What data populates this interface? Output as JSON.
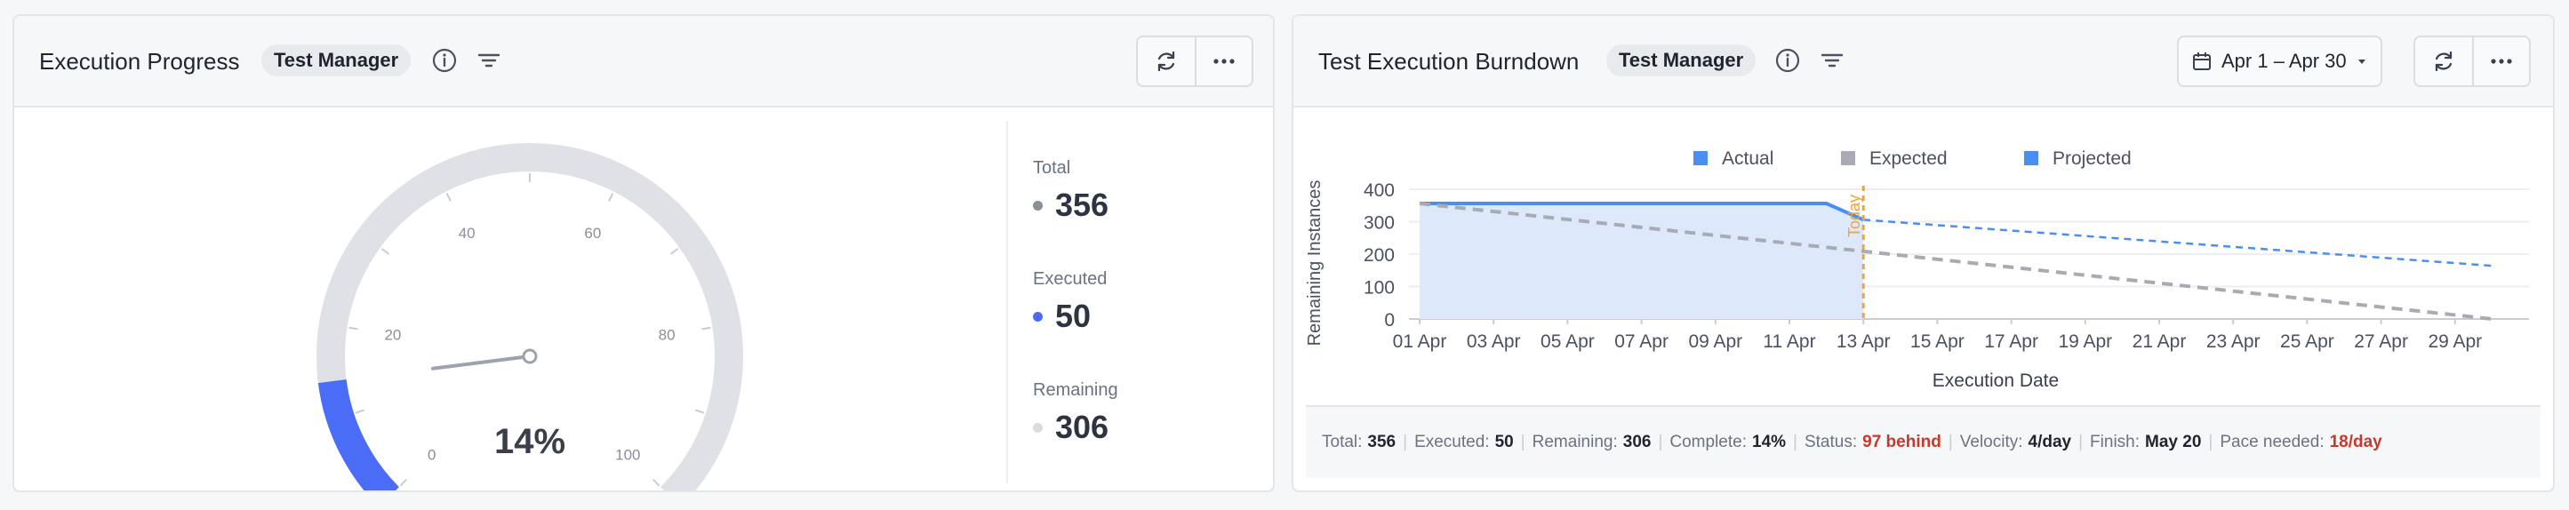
{
  "left": {
    "title": "Execution Progress",
    "badge": "Test Manager",
    "gauge": {
      "percent_label": "14%",
      "value": 14,
      "ticks": [
        "0",
        "20",
        "40",
        "60",
        "80",
        "100"
      ],
      "colors": {
        "track": "#dfe1e6",
        "fill": "#4a6cf7",
        "needle": "#9ca3af"
      }
    },
    "stats": [
      {
        "label": "Total",
        "value": "356",
        "color": "#8a8f98"
      },
      {
        "label": "Executed",
        "value": "50",
        "color": "#4a6cf7"
      },
      {
        "label": "Remaining",
        "value": "306",
        "color": "#d9dbe0"
      }
    ]
  },
  "right": {
    "title": "Test Execution Burndown",
    "badge": "Test Manager",
    "date_range": "Apr 1 – Apr 30",
    "footer": [
      {
        "label": "Total:",
        "value": "356"
      },
      {
        "label": "Executed:",
        "value": "50"
      },
      {
        "label": "Remaining:",
        "value": "306"
      },
      {
        "label": "Complete:",
        "value": "14%"
      },
      {
        "label": "Status:",
        "value": "97 behind",
        "alert": true
      },
      {
        "label": "Velocity:",
        "value": "4/day"
      },
      {
        "label": "Finish:",
        "value": "May 20"
      },
      {
        "label": "Pace needed:",
        "value": "18/day",
        "alert": true
      }
    ]
  },
  "chart_data": {
    "type": "line",
    "xlabel": "Execution Date",
    "ylabel": "Remaining Instances",
    "ylim": [
      0,
      400
    ],
    "yticks": [
      0,
      100,
      200,
      300,
      400
    ],
    "xticks": [
      "01 Apr",
      "03 Apr",
      "05 Apr",
      "07 Apr",
      "09 Apr",
      "11 Apr",
      "13 Apr",
      "15 Apr",
      "17 Apr",
      "19 Apr",
      "21 Apr",
      "23 Apr",
      "25 Apr",
      "27 Apr",
      "29 Apr"
    ],
    "xlim_days": [
      1,
      30
    ],
    "grid": true,
    "legend_position": "top-center",
    "today_day": 13,
    "today_label": "Today",
    "series": [
      {
        "name": "Actual",
        "color": "#4a8ff0",
        "x_days": [
          1,
          12,
          13
        ],
        "values": [
          356,
          356,
          306
        ]
      },
      {
        "name": "Expected",
        "color": "#a8abb1",
        "x_days": [
          1,
          30
        ],
        "values": [
          356,
          0
        ]
      },
      {
        "name": "Projected",
        "color": "#4a8ff0",
        "x_days": [
          13,
          30
        ],
        "values": [
          306,
          164
        ]
      }
    ]
  }
}
